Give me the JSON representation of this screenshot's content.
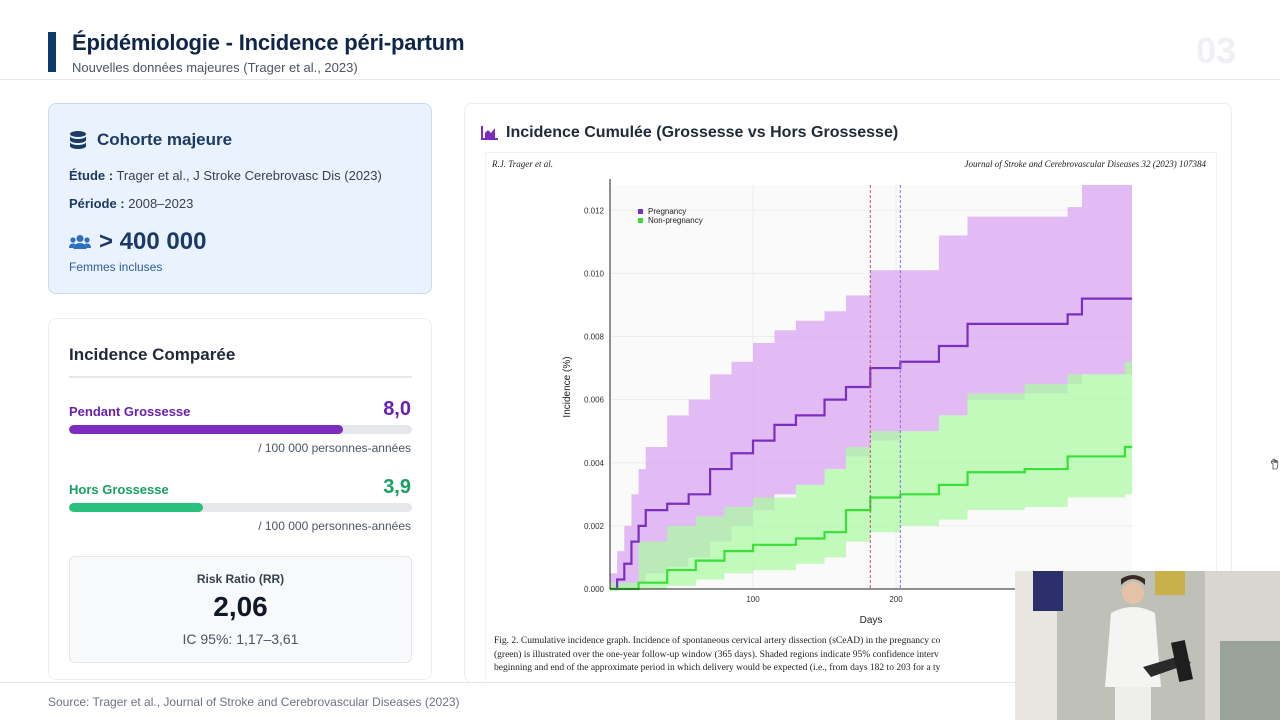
{
  "header": {
    "title": "Épidémiologie - Incidence péri-partum",
    "subtitle": "Nouvelles données majeures (Trager et al., 2023)",
    "slide_number": "03"
  },
  "cohort": {
    "title": "Cohorte majeure",
    "icon": "database-icon",
    "study_label": "Étude :",
    "study_value": "Trager et al., J Stroke Cerebrovasc Dis (2023)",
    "period_label": "Période :",
    "period_value": "2008–2023",
    "count_icon": "users-icon",
    "count": "> 400 000",
    "count_label": "Femmes incluses"
  },
  "incidence": {
    "title": "Incidence Comparée",
    "pregnancy": {
      "label": "Pendant Grossesse",
      "value": "8,0",
      "unit": "/ 100 000 personnes-années",
      "bar_fraction": 0.8,
      "color": "#7b2cbf"
    },
    "non_pregnancy": {
      "label": "Hors Grossesse",
      "value": "3,9",
      "unit": "/ 100 000 personnes-années",
      "bar_fraction": 0.39,
      "color": "#27c07d"
    },
    "risk_ratio": {
      "label": "Risk Ratio (RR)",
      "value": "2,06",
      "ci": "IC 95%: 1,17–3,61"
    }
  },
  "chart_card": {
    "title": "Incidence Cumulée (Grossesse vs Hors Grossesse)",
    "icon": "area-chart-icon",
    "paper_author": "R.J. Trager et al.",
    "paper_journal": "Journal of Stroke and Cerebrovascular Diseases 32 (2023) 107384",
    "caption_lines": [
      "Fig. 2. Cumulative incidence graph. Incidence of spontaneous cervical artery dissection (sCeAD) in the pregnancy co",
      "(green) is illustrated over the one-year follow-up window (365 days). Shaded regions indicate 95% confidence interv",
      "beginning and end of the approximate period in which delivery would be expected (i.e., from days 182 to 203 for a ty"
    ]
  },
  "chart_data": {
    "type": "line",
    "xlabel": "Days",
    "ylabel": "Incidence (%)",
    "xlim": [
      0,
      365
    ],
    "ylim": [
      0,
      0.0128
    ],
    "x_ticks": [
      "100",
      "200"
    ],
    "y_ticks": [
      "0.000",
      "0.002",
      "0.004",
      "0.006",
      "0.008",
      "0.010",
      "0.012"
    ],
    "vlines": [
      182,
      203
    ],
    "legend_position": "top-left",
    "series": [
      {
        "name": "Pregnancy",
        "color": "#7b2fbe",
        "band_color": "#d9a6f2",
        "x": [
          0,
          5,
          10,
          15,
          20,
          25,
          40,
          55,
          70,
          85,
          100,
          115,
          130,
          150,
          165,
          182,
          203,
          230,
          250,
          290,
          320,
          330,
          365
        ],
        "y": [
          0,
          0.0003,
          0.0008,
          0.0015,
          0.002,
          0.0025,
          0.0027,
          0.003,
          0.0038,
          0.0043,
          0.0047,
          0.0052,
          0.0055,
          0.006,
          0.0064,
          0.007,
          0.0072,
          0.0077,
          0.0084,
          0.0084,
          0.0087,
          0.0092,
          0.0092
        ],
        "lower": [
          0,
          0,
          0,
          0,
          0.0002,
          0.0005,
          0.0007,
          0.001,
          0.0015,
          0.002,
          0.0025,
          0.003,
          0.0033,
          0.0038,
          0.0042,
          0.0047,
          0.005,
          0.0055,
          0.006,
          0.0062,
          0.0065,
          0.0068,
          0.0068
        ],
        "upper": [
          0.0005,
          0.0012,
          0.002,
          0.003,
          0.0038,
          0.0045,
          0.0055,
          0.006,
          0.0068,
          0.0072,
          0.0078,
          0.0082,
          0.0085,
          0.0088,
          0.0093,
          0.0101,
          0.0101,
          0.0112,
          0.0118,
          0.0118,
          0.0121,
          0.0128,
          0.0128
        ]
      },
      {
        "name": "Non-pregnancy",
        "color": "#38e038",
        "band_color": "#aefaa6",
        "x": [
          0,
          20,
          40,
          60,
          80,
          100,
          130,
          150,
          165,
          182,
          203,
          230,
          250,
          290,
          320,
          360,
          365
        ],
        "y": [
          0,
          0.0002,
          0.0006,
          0.0009,
          0.0012,
          0.0014,
          0.0016,
          0.0018,
          0.0025,
          0.0029,
          0.003,
          0.0033,
          0.0037,
          0.0038,
          0.0042,
          0.0045,
          0.0045
        ],
        "lower": [
          0,
          0,
          0.0001,
          0.0003,
          0.0005,
          0.0006,
          0.0008,
          0.001,
          0.0015,
          0.0018,
          0.002,
          0.0022,
          0.0025,
          0.0026,
          0.0029,
          0.003,
          0.003
        ],
        "upper": [
          0.0002,
          0.0015,
          0.002,
          0.0023,
          0.0026,
          0.0029,
          0.0033,
          0.0038,
          0.0045,
          0.005,
          0.005,
          0.0055,
          0.0062,
          0.0065,
          0.0068,
          0.0072,
          0.0072
        ]
      }
    ]
  },
  "footer": {
    "source": "Source: Trager et al., Journal of Stroke and Cerebrovascular Diseases (2023)"
  },
  "colors": {
    "brand": "#0b3a6b",
    "pregnancy": "#7b2cbf",
    "non_pregnancy": "#27c07d"
  }
}
